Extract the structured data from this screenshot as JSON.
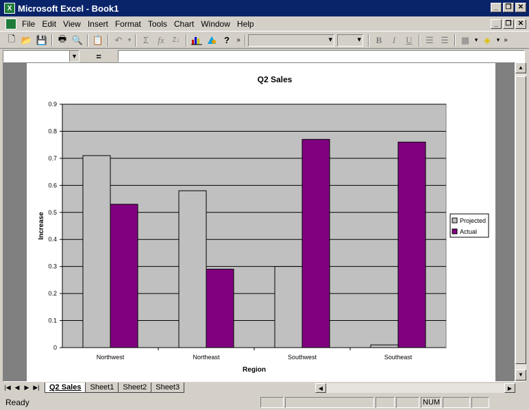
{
  "window": {
    "title": "Microsoft Excel - Book1",
    "app_icon": "X"
  },
  "window_buttons": [
    "minimize-icon",
    "restore-icon",
    "close-icon"
  ],
  "menu": [
    "File",
    "Edit",
    "View",
    "Insert",
    "Format",
    "Tools",
    "Chart",
    "Window",
    "Help"
  ],
  "formula_bar": {
    "name_box": "",
    "equals": "=",
    "content": ""
  },
  "status": {
    "text": "Ready",
    "num": "NUM"
  },
  "sheet_tabs": [
    {
      "label": "Q2 Sales",
      "active": true
    },
    {
      "label": "Sheet1",
      "active": false
    },
    {
      "label": "Sheet2",
      "active": false
    },
    {
      "label": "Sheet3",
      "active": false
    }
  ],
  "chart_data": {
    "type": "bar",
    "title": "Q2 Sales",
    "xlabel": "Region",
    "ylabel": "Increase",
    "categories": [
      "Northwest",
      "Northeast",
      "Southwest",
      "Southeast"
    ],
    "series": [
      {
        "name": "Projected",
        "color": "#c0c0c0",
        "values": [
          0.71,
          0.58,
          0.3,
          0.01
        ]
      },
      {
        "name": "Actual",
        "color": "#800080",
        "values": [
          0.53,
          0.29,
          0.77,
          0.76
        ]
      }
    ],
    "ylim": [
      0,
      0.9
    ],
    "yticks": [
      "0",
      "0.1",
      "0.2",
      "0.3",
      "0.4",
      "0.5",
      "0.6",
      "0.7",
      "0.8",
      "0.9"
    ],
    "plot_background": "#c0c0c0",
    "grid": true,
    "legend": "right"
  }
}
